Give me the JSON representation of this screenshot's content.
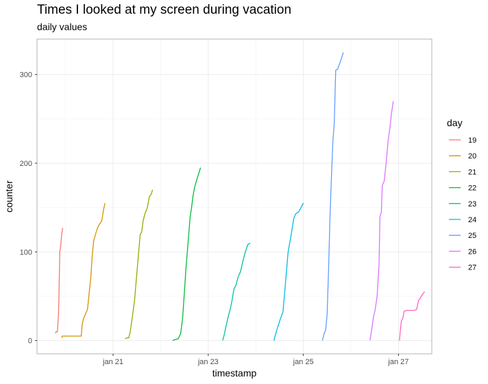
{
  "chart_data": {
    "type": "line",
    "title": "Times I looked at my screen during vacation",
    "subtitle": "daily values",
    "xlabel": "timestamp",
    "ylabel": "counter",
    "xlim": [
      19.4,
      27.7
    ],
    "ylim": [
      -15,
      340
    ],
    "x_ticks": [
      21,
      23,
      25,
      27
    ],
    "x_tick_labels": [
      "jan 21",
      "jan 23",
      "jan 25",
      "jan 27"
    ],
    "y_ticks": [
      0,
      100,
      200,
      300
    ],
    "grid": true,
    "legend": {
      "title": "day",
      "placement": "right"
    },
    "series": [
      {
        "name": "19",
        "color": "#F8766D",
        "points": [
          [
            19.79,
            8
          ],
          [
            19.8,
            10
          ],
          [
            19.82,
            10
          ],
          [
            19.83,
            10
          ],
          [
            19.84,
            20
          ],
          [
            19.85,
            28
          ],
          [
            19.86,
            45
          ],
          [
            19.87,
            75
          ],
          [
            19.88,
            100
          ],
          [
            19.9,
            108
          ],
          [
            19.91,
            115
          ],
          [
            19.92,
            120
          ],
          [
            19.93,
            124
          ],
          [
            19.94,
            127
          ]
        ]
      },
      {
        "name": "20",
        "color": "#D39200",
        "points": [
          [
            19.92,
            3
          ],
          [
            19.93,
            5
          ],
          [
            20.0,
            5
          ],
          [
            20.2,
            5
          ],
          [
            20.3,
            5
          ],
          [
            20.33,
            5
          ],
          [
            20.35,
            18
          ],
          [
            20.38,
            25
          ],
          [
            20.42,
            30
          ],
          [
            20.46,
            35
          ],
          [
            20.5,
            55
          ],
          [
            20.53,
            70
          ],
          [
            20.56,
            95
          ],
          [
            20.59,
            112
          ],
          [
            20.62,
            118
          ],
          [
            20.66,
            125
          ],
          [
            20.7,
            130
          ],
          [
            20.76,
            135
          ],
          [
            20.8,
            148
          ],
          [
            20.83,
            155
          ]
        ]
      },
      {
        "name": "21",
        "color": "#93AA00",
        "points": [
          [
            21.25,
            2
          ],
          [
            21.29,
            3
          ],
          [
            21.33,
            3
          ],
          [
            21.36,
            10
          ],
          [
            21.4,
            25
          ],
          [
            21.45,
            45
          ],
          [
            21.49,
            70
          ],
          [
            21.53,
            95
          ],
          [
            21.57,
            120
          ],
          [
            21.6,
            122
          ],
          [
            21.63,
            135
          ],
          [
            21.67,
            143
          ],
          [
            21.72,
            150
          ],
          [
            21.76,
            162
          ],
          [
            21.8,
            165
          ],
          [
            21.83,
            170
          ]
        ]
      },
      {
        "name": "22",
        "color": "#00BA38",
        "points": [
          [
            22.25,
            0
          ],
          [
            22.3,
            1
          ],
          [
            22.37,
            2
          ],
          [
            22.42,
            8
          ],
          [
            22.46,
            25
          ],
          [
            22.5,
            55
          ],
          [
            22.53,
            80
          ],
          [
            22.56,
            100
          ],
          [
            22.59,
            120
          ],
          [
            22.62,
            140
          ],
          [
            22.65,
            150
          ],
          [
            22.68,
            163
          ],
          [
            22.71,
            172
          ],
          [
            22.74,
            178
          ],
          [
            22.78,
            185
          ],
          [
            22.82,
            192
          ],
          [
            22.84,
            195
          ]
        ]
      },
      {
        "name": "23",
        "color": "#00C19F",
        "points": [
          [
            23.3,
            0
          ],
          [
            23.33,
            5
          ],
          [
            23.37,
            15
          ],
          [
            23.42,
            27
          ],
          [
            23.46,
            35
          ],
          [
            23.5,
            45
          ],
          [
            23.54,
            58
          ],
          [
            23.58,
            62
          ],
          [
            23.63,
            72
          ],
          [
            23.68,
            78
          ],
          [
            23.73,
            90
          ],
          [
            23.78,
            100
          ],
          [
            23.83,
            108
          ],
          [
            23.88,
            110
          ]
        ]
      },
      {
        "name": "24",
        "color": "#00B9E3",
        "points": [
          [
            24.38,
            0
          ],
          [
            24.42,
            8
          ],
          [
            24.46,
            15
          ],
          [
            24.52,
            25
          ],
          [
            24.57,
            32
          ],
          [
            24.6,
            50
          ],
          [
            24.64,
            75
          ],
          [
            24.68,
            100
          ],
          [
            24.72,
            112
          ],
          [
            24.76,
            125
          ],
          [
            24.8,
            138
          ],
          [
            24.84,
            143
          ],
          [
            24.9,
            145
          ],
          [
            24.95,
            150
          ],
          [
            25.0,
            155
          ]
        ]
      },
      {
        "name": "25",
        "color": "#619CFF",
        "points": [
          [
            25.4,
            0
          ],
          [
            25.43,
            7
          ],
          [
            25.47,
            12
          ],
          [
            25.5,
            30
          ],
          [
            25.53,
            80
          ],
          [
            25.56,
            140
          ],
          [
            25.59,
            185
          ],
          [
            25.62,
            225
          ],
          [
            25.65,
            245
          ],
          [
            25.68,
            305
          ],
          [
            25.72,
            306
          ],
          [
            25.76,
            312
          ],
          [
            25.8,
            318
          ],
          [
            25.84,
            325
          ]
        ]
      },
      {
        "name": "26",
        "color": "#DB72FB",
        "points": [
          [
            26.4,
            0
          ],
          [
            26.43,
            10
          ],
          [
            26.47,
            25
          ],
          [
            26.51,
            35
          ],
          [
            26.55,
            50
          ],
          [
            26.59,
            85
          ],
          [
            26.61,
            140
          ],
          [
            26.64,
            145
          ],
          [
            26.66,
            175
          ],
          [
            26.7,
            180
          ],
          [
            26.74,
            200
          ],
          [
            26.78,
            225
          ],
          [
            26.82,
            240
          ],
          [
            26.85,
            255
          ],
          [
            26.89,
            270
          ]
        ]
      },
      {
        "name": "27",
        "color": "#FF61C3",
        "points": [
          [
            27.02,
            0
          ],
          [
            27.04,
            12
          ],
          [
            27.06,
            22
          ],
          [
            27.09,
            25
          ],
          [
            27.12,
            33
          ],
          [
            27.18,
            34
          ],
          [
            27.25,
            34
          ],
          [
            27.33,
            34
          ],
          [
            27.38,
            35
          ],
          [
            27.42,
            45
          ],
          [
            27.46,
            48
          ],
          [
            27.5,
            52
          ],
          [
            27.55,
            55
          ]
        ]
      }
    ]
  }
}
